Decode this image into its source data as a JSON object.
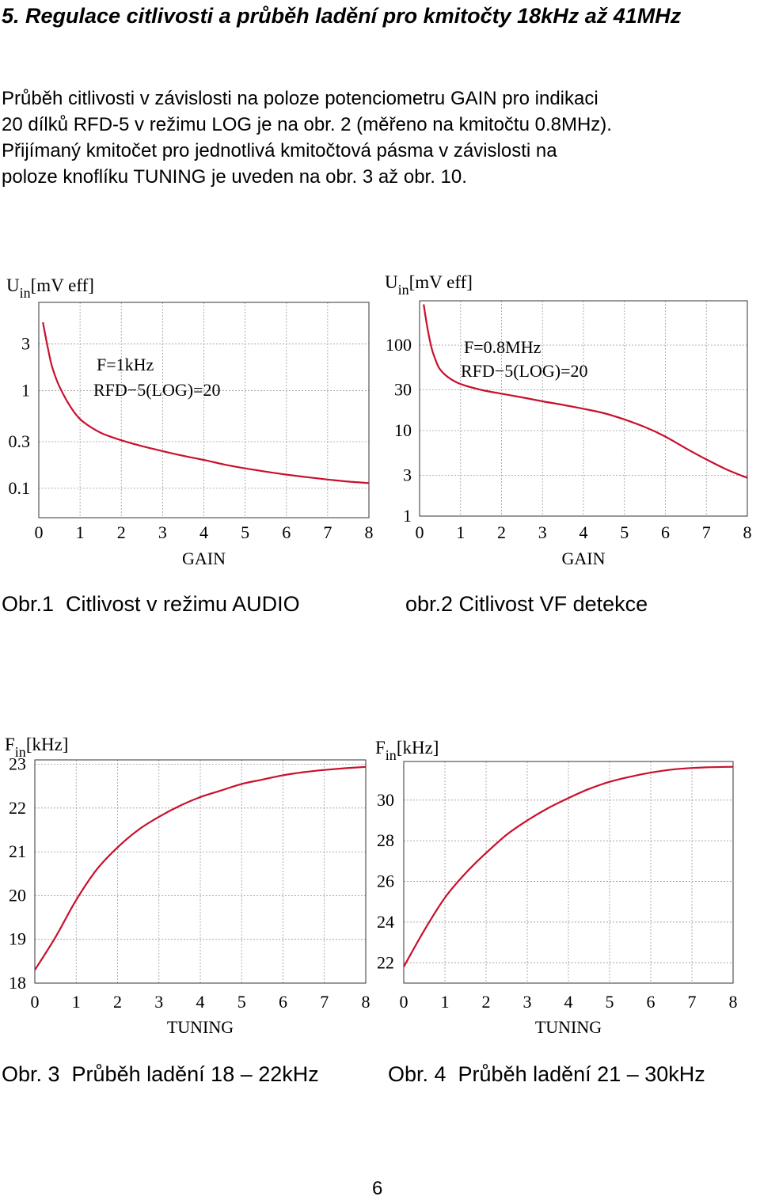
{
  "heading": "5. Regulace citlivosti a průběh ladění pro kmitočty 18kHz až 41MHz",
  "paragraph_lines": [
    "Průběh citlivosti v závislosti na poloze potenciometru GAIN pro indikaci",
    "20 dílků RFD-5 v režimu LOG je na obr. 2 (měřeno na kmitočtu 0.8MHz).",
    "Přijímaný kmitočet pro jednotlivá kmitočtová pásma v závislosti na",
    "poloze knoflíku TUNING je uveden na obr. 3 až obr. 10."
  ],
  "captions": {
    "fig1": "Obr.1  Citlivost v režimu AUDIO",
    "fig2": "obr.2 Citlivost VF detekce",
    "fig3": "Obr. 3  Průběh ladění 18 – 22kHz",
    "fig4": "Obr. 4  Průběh ladění 21 – 30kHz"
  },
  "page_number": "6",
  "colors": {
    "curve": "#c8102e",
    "grid": "#9a9a9a",
    "frame": "#000000"
  },
  "chart_data": [
    {
      "type": "line",
      "ylabel": "U",
      "ylabel_sub": "in",
      "ylabel_unit": "[mV eff]",
      "xlabel": "GAIN",
      "x_ticks": [
        "0",
        "1",
        "2",
        "3",
        "4",
        "5",
        "6",
        "7",
        "8"
      ],
      "y_ticks": [
        "0.1",
        "0.3",
        "1",
        "3"
      ],
      "y_scale": "log",
      "annotation": [
        "F=1kHz",
        "RFD−5(LOG)=20"
      ],
      "xlim": [
        0,
        8
      ],
      "ylim": [
        0.05,
        8
      ],
      "grid": true,
      "x": [
        0.1,
        0.2,
        0.3,
        0.4,
        0.5,
        0.7,
        0.9,
        1.1,
        1.5,
        2,
        2.5,
        3,
        3.5,
        4,
        4.5,
        5,
        5.5,
        6,
        6.5,
        7,
        7.5,
        8
      ],
      "y": [
        5,
        3,
        1.9,
        1.4,
        1.1,
        0.76,
        0.57,
        0.47,
        0.37,
        0.31,
        0.27,
        0.24,
        0.215,
        0.195,
        0.175,
        0.16,
        0.148,
        0.138,
        0.13,
        0.123,
        0.117,
        0.113
      ]
    },
    {
      "type": "line",
      "ylabel": "U",
      "ylabel_sub": "in",
      "ylabel_unit": "[mV eff]",
      "xlabel": "GAIN",
      "x_ticks": [
        "0",
        "1",
        "2",
        "3",
        "4",
        "5",
        "6",
        "7",
        "8"
      ],
      "y_ticks": [
        "1",
        "3",
        "10",
        "30",
        "100"
      ],
      "y_scale": "log",
      "annotation": [
        "F=0.8MHz",
        "RFD−5(LOG)=20"
      ],
      "xlim": [
        0,
        8
      ],
      "ylim": [
        1,
        330
      ],
      "grid": true,
      "x": [
        0.1,
        0.2,
        0.3,
        0.4,
        0.5,
        0.7,
        1,
        1.5,
        2,
        2.5,
        3,
        3.5,
        4,
        4.5,
        5,
        5.5,
        6,
        6.5,
        7,
        7.5,
        8
      ],
      "y": [
        300,
        150,
        90,
        65,
        52,
        42,
        35,
        30,
        27,
        24.5,
        22,
        20,
        18,
        16,
        13.5,
        11,
        8.5,
        6.2,
        4.6,
        3.5,
        2.8
      ]
    },
    {
      "type": "line",
      "ylabel": "F",
      "ylabel_sub": "in",
      "ylabel_unit": "[kHz]",
      "xlabel": "TUNING",
      "x_ticks": [
        "0",
        "1",
        "2",
        "3",
        "4",
        "5",
        "6",
        "7",
        "8"
      ],
      "y_ticks": [
        "18",
        "19",
        "20",
        "21",
        "22",
        "23"
      ],
      "xlim": [
        0,
        8
      ],
      "ylim": [
        18,
        23.1
      ],
      "grid": true,
      "x": [
        0,
        0.5,
        1,
        1.5,
        2,
        2.5,
        3,
        3.5,
        4,
        4.5,
        5,
        5.5,
        6,
        6.5,
        7,
        7.5,
        8
      ],
      "y": [
        18.3,
        19.05,
        19.9,
        20.6,
        21.1,
        21.5,
        21.8,
        22.05,
        22.25,
        22.4,
        22.55,
        22.65,
        22.75,
        22.82,
        22.87,
        22.91,
        22.94
      ]
    },
    {
      "type": "line",
      "ylabel": "F",
      "ylabel_sub": "in",
      "ylabel_unit": "[kHz]",
      "xlabel": "TUNING",
      "x_ticks": [
        "0",
        "1",
        "2",
        "3",
        "4",
        "5",
        "6",
        "7",
        "8"
      ],
      "y_ticks": [
        "22",
        "24",
        "26",
        "28",
        "30"
      ],
      "xlim": [
        0,
        8
      ],
      "ylim": [
        21,
        31.9
      ],
      "grid": true,
      "x": [
        0,
        0.5,
        1,
        1.5,
        2,
        2.5,
        3,
        3.5,
        4,
        4.5,
        5,
        5.5,
        6,
        6.5,
        7,
        7.5,
        8
      ],
      "y": [
        21.8,
        23.6,
        25.2,
        26.4,
        27.4,
        28.3,
        29.0,
        29.6,
        30.1,
        30.55,
        30.9,
        31.15,
        31.35,
        31.5,
        31.58,
        31.62,
        31.64
      ]
    }
  ]
}
